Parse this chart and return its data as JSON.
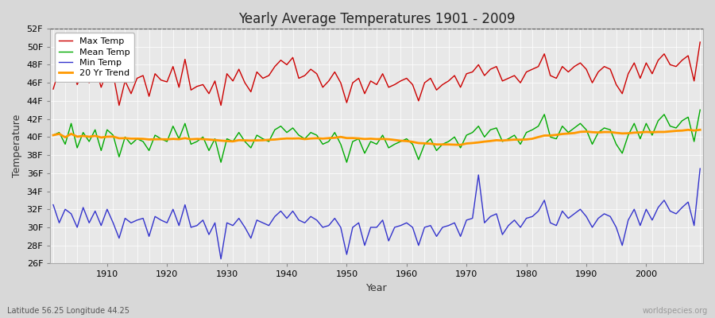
{
  "title": "Yearly Average Temperatures 1901 - 2009",
  "xlabel": "Year",
  "ylabel": "Temperature",
  "subtitle_left": "Latitude 56.25 Longitude 44.25",
  "subtitle_right": "worldspecies.org",
  "years": [
    1901,
    1902,
    1903,
    1904,
    1905,
    1906,
    1907,
    1908,
    1909,
    1910,
    1911,
    1912,
    1913,
    1914,
    1915,
    1916,
    1917,
    1918,
    1919,
    1920,
    1921,
    1922,
    1923,
    1924,
    1925,
    1926,
    1927,
    1928,
    1929,
    1930,
    1931,
    1932,
    1933,
    1934,
    1935,
    1936,
    1937,
    1938,
    1939,
    1940,
    1941,
    1942,
    1943,
    1944,
    1945,
    1946,
    1947,
    1948,
    1949,
    1950,
    1951,
    1952,
    1953,
    1954,
    1955,
    1956,
    1957,
    1958,
    1959,
    1960,
    1961,
    1962,
    1963,
    1964,
    1965,
    1966,
    1967,
    1968,
    1969,
    1970,
    1971,
    1972,
    1973,
    1974,
    1975,
    1976,
    1977,
    1978,
    1979,
    1980,
    1981,
    1982,
    1983,
    1984,
    1985,
    1986,
    1987,
    1988,
    1989,
    1990,
    1991,
    1992,
    1993,
    1994,
    1995,
    1996,
    1997,
    1998,
    1999,
    2000,
    2001,
    2002,
    2003,
    2004,
    2005,
    2006,
    2007,
    2008,
    2009
  ],
  "max_temp": [
    45.3,
    47.5,
    46.2,
    48.1,
    45.8,
    47.2,
    46.0,
    47.8,
    45.5,
    47.3,
    47.0,
    43.5,
    46.2,
    44.8,
    46.5,
    46.8,
    44.5,
    47.0,
    46.3,
    46.1,
    47.8,
    45.5,
    48.6,
    45.2,
    45.6,
    45.8,
    44.8,
    46.2,
    43.5,
    47.0,
    46.2,
    47.5,
    46.0,
    45.0,
    47.2,
    46.5,
    46.8,
    47.8,
    48.5,
    48.0,
    48.8,
    46.5,
    46.8,
    47.5,
    47.0,
    45.5,
    46.2,
    47.2,
    46.0,
    43.8,
    46.0,
    46.5,
    44.8,
    46.2,
    45.8,
    47.0,
    45.5,
    45.8,
    46.2,
    46.5,
    45.8,
    44.0,
    46.0,
    46.5,
    45.2,
    45.8,
    46.2,
    46.8,
    45.5,
    47.0,
    47.2,
    48.0,
    46.8,
    47.5,
    47.8,
    46.2,
    46.5,
    46.8,
    46.0,
    47.2,
    47.5,
    47.8,
    49.2,
    46.8,
    46.5,
    47.8,
    47.2,
    47.8,
    48.2,
    47.5,
    46.0,
    47.2,
    47.8,
    47.5,
    45.8,
    44.8,
    47.0,
    48.2,
    46.5,
    48.2,
    47.0,
    48.5,
    49.2,
    48.0,
    47.8,
    48.5,
    49.0,
    46.2,
    50.5
  ],
  "mean_temp": [
    40.2,
    40.5,
    39.2,
    41.5,
    38.8,
    40.5,
    39.5,
    40.8,
    38.5,
    40.8,
    40.2,
    37.8,
    40.0,
    39.2,
    39.8,
    39.5,
    38.5,
    40.2,
    39.8,
    39.5,
    41.2,
    39.8,
    41.5,
    39.2,
    39.5,
    40.0,
    38.5,
    39.8,
    37.2,
    39.8,
    39.5,
    40.5,
    39.5,
    38.8,
    40.2,
    39.8,
    39.5,
    40.8,
    41.2,
    40.5,
    41.0,
    40.2,
    39.8,
    40.5,
    40.2,
    39.2,
    39.5,
    40.5,
    39.2,
    37.2,
    39.5,
    39.8,
    38.2,
    39.5,
    39.2,
    40.2,
    38.8,
    39.2,
    39.5,
    39.8,
    39.2,
    37.5,
    39.2,
    39.8,
    38.5,
    39.2,
    39.5,
    40.0,
    38.8,
    40.2,
    40.5,
    41.2,
    40.0,
    40.8,
    41.0,
    39.5,
    39.8,
    40.2,
    39.2,
    40.5,
    40.8,
    41.2,
    42.5,
    40.0,
    39.8,
    41.2,
    40.5,
    41.0,
    41.5,
    40.8,
    39.2,
    40.5,
    41.0,
    40.8,
    39.2,
    38.2,
    40.2,
    41.5,
    39.8,
    41.5,
    40.2,
    41.8,
    42.5,
    41.2,
    41.0,
    41.8,
    42.2,
    39.5,
    43.0
  ],
  "min_temp": [
    32.5,
    30.5,
    32.0,
    31.5,
    30.0,
    32.2,
    30.5,
    31.8,
    30.2,
    32.0,
    30.5,
    28.8,
    31.0,
    30.5,
    30.8,
    31.0,
    29.0,
    31.2,
    30.8,
    30.5,
    32.0,
    30.2,
    32.5,
    30.0,
    30.2,
    30.8,
    29.2,
    30.5,
    26.5,
    30.5,
    30.2,
    31.0,
    30.0,
    28.8,
    30.8,
    30.5,
    30.2,
    31.2,
    31.8,
    31.0,
    31.8,
    30.8,
    30.5,
    31.2,
    30.8,
    30.0,
    30.2,
    31.0,
    30.0,
    27.0,
    30.0,
    30.5,
    28.0,
    30.0,
    30.0,
    30.8,
    28.5,
    30.0,
    30.2,
    30.5,
    30.0,
    28.0,
    30.0,
    30.2,
    29.0,
    30.0,
    30.2,
    30.5,
    29.0,
    30.8,
    31.0,
    35.8,
    30.5,
    31.2,
    31.5,
    29.2,
    30.2,
    30.8,
    30.0,
    31.0,
    31.2,
    31.8,
    33.0,
    30.5,
    30.2,
    31.8,
    31.0,
    31.5,
    32.0,
    31.2,
    30.0,
    31.0,
    31.5,
    31.2,
    30.0,
    28.0,
    30.8,
    32.0,
    30.2,
    32.0,
    30.8,
    32.2,
    33.0,
    31.8,
    31.5,
    32.2,
    32.8,
    30.2,
    36.5
  ],
  "ylim": [
    26,
    52
  ],
  "yticks": [
    26,
    28,
    30,
    32,
    34,
    36,
    38,
    40,
    42,
    44,
    46,
    48,
    50,
    52
  ],
  "ytick_labels": [
    "26F",
    "28F",
    "30F",
    "32F",
    "34F",
    "36F",
    "38F",
    "40F",
    "42F",
    "44F",
    "46F",
    "48F",
    "50F",
    "52F"
  ],
  "xticks": [
    1910,
    1920,
    1930,
    1940,
    1950,
    1960,
    1970,
    1980,
    1990,
    2000
  ],
  "max_color": "#cc0000",
  "mean_color": "#00aa00",
  "min_color": "#3333cc",
  "trend_color": "#ff9900",
  "bg_color": "#d8d8d8",
  "plot_bg_color": "#e8e8e8",
  "grid_color": "#ffffff",
  "legend_labels": [
    "Max Temp",
    "Mean Temp",
    "Min Temp",
    "20 Yr Trend"
  ]
}
